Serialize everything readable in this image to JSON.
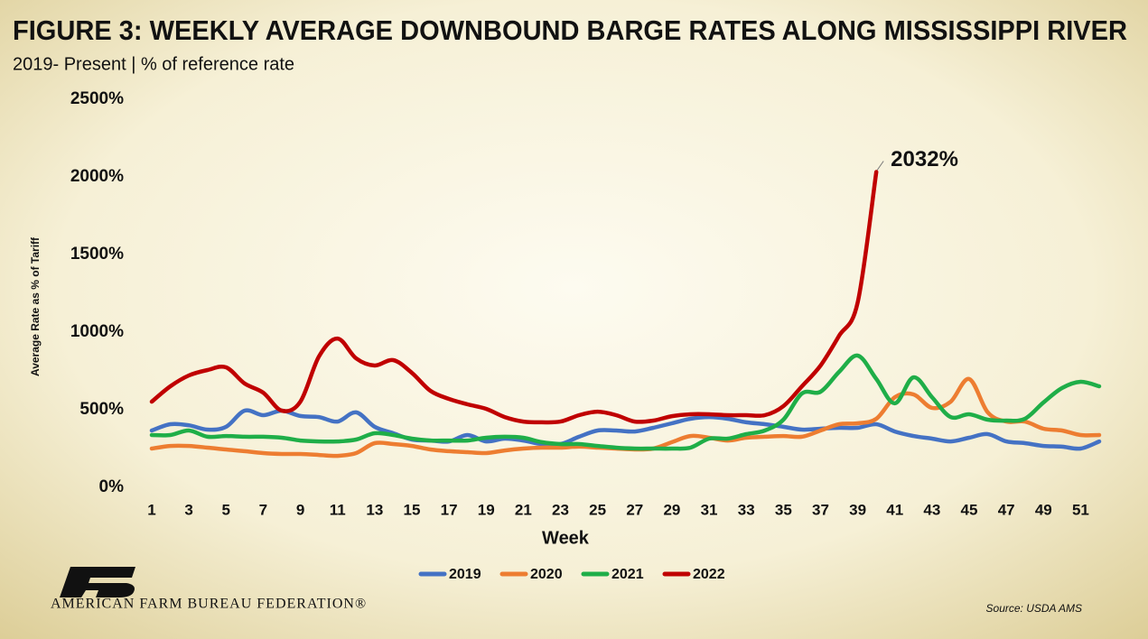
{
  "chart_data": {
    "type": "line",
    "title": "FIGURE 3: WEEKLY AVERAGE DOWNBOUND BARGE RATES ALONG MISSISSIPPI RIVER",
    "subtitle": "2019- Present | % of reference rate",
    "y_label": "Average Rate as % of Tariff",
    "x_label": "Week",
    "source": "Source: USDA AMS",
    "organization": "AMERICAN FARM BUREAU FEDERATION®",
    "x": [
      1,
      2,
      3,
      4,
      5,
      6,
      7,
      8,
      9,
      10,
      11,
      12,
      13,
      14,
      15,
      16,
      17,
      18,
      19,
      20,
      21,
      22,
      23,
      24,
      25,
      26,
      27,
      28,
      29,
      30,
      31,
      32,
      33,
      34,
      35,
      36,
      37,
      38,
      39,
      40,
      41,
      42,
      43,
      44,
      45,
      46,
      47,
      48,
      49,
      50,
      51,
      52
    ],
    "xlim": [
      1,
      52
    ],
    "xticks": [
      1,
      3,
      5,
      7,
      9,
      11,
      13,
      15,
      17,
      19,
      21,
      23,
      25,
      27,
      29,
      31,
      33,
      35,
      37,
      39,
      41,
      43,
      45,
      47,
      49,
      51
    ],
    "ylim": [
      0,
      2500
    ],
    "yticks": [
      {
        "value": 0,
        "label": "0%"
      },
      {
        "value": 500,
        "label": "500%"
      },
      {
        "value": 1000,
        "label": "1000%"
      },
      {
        "value": 1500,
        "label": "1500%"
      },
      {
        "value": 2000,
        "label": "2000%"
      },
      {
        "value": 2500,
        "label": "2500%"
      }
    ],
    "grid": false,
    "legend": "bottom",
    "series": [
      {
        "name": "2019",
        "color": "#4472c4",
        "values": [
          366,
          407,
          400,
          372,
          390,
          494,
          465,
          494,
          460,
          453,
          424,
          483,
          390,
          349,
          308,
          302,
          296,
          337,
          296,
          314,
          302,
          279,
          279,
          326,
          366,
          366,
          360,
          384,
          413,
          442,
          453,
          442,
          419,
          407,
          390,
          372,
          378,
          384,
          384,
          407,
          360,
          331,
          314,
          296,
          320,
          343,
          296,
          285,
          267,
          262,
          250,
          296
        ]
      },
      {
        "name": "2020",
        "color": "#ed7d31",
        "values": [
          250,
          267,
          267,
          256,
          244,
          233,
          221,
          215,
          215,
          209,
          203,
          221,
          285,
          279,
          267,
          244,
          233,
          227,
          221,
          238,
          250,
          256,
          256,
          262,
          256,
          250,
          244,
          250,
          291,
          331,
          320,
          302,
          320,
          326,
          331,
          326,
          366,
          407,
          413,
          442,
          581,
          599,
          512,
          552,
          698,
          483,
          424,
          424,
          378,
          366,
          337,
          337
        ]
      },
      {
        "name": "2021",
        "color": "#1fae48",
        "values": [
          337,
          337,
          366,
          326,
          331,
          326,
          326,
          320,
          302,
          296,
          296,
          308,
          349,
          337,
          314,
          302,
          302,
          302,
          320,
          326,
          320,
          291,
          279,
          279,
          267,
          256,
          250,
          250,
          250,
          256,
          314,
          314,
          343,
          366,
          436,
          605,
          616,
          744,
          849,
          698,
          541,
          709,
          581,
          453,
          471,
          436,
          430,
          442,
          547,
          640,
          680,
          651
        ]
      },
      {
        "name": "2022",
        "color": "#c00000",
        "values": [
          552,
          651,
          721,
          756,
          773,
          669,
          610,
          494,
          552,
          843,
          959,
          831,
          785,
          820,
          738,
          622,
          570,
          535,
          506,
          453,
          424,
          419,
          424,
          465,
          488,
          465,
          424,
          430,
          459,
          471,
          471,
          465,
          465,
          465,
          523,
          651,
          785,
          977,
          1192,
          2032,
          null,
          null,
          null,
          null,
          null,
          null,
          null,
          null,
          null,
          null,
          null,
          null
        ],
        "value_labels": [
          null,
          null,
          null,
          null,
          null,
          null,
          null,
          null,
          null,
          null,
          null,
          null,
          null,
          null,
          null,
          null,
          null,
          null,
          null,
          null,
          null,
          null,
          null,
          null,
          null,
          null,
          null,
          null,
          null,
          null,
          null,
          null,
          null,
          null,
          null,
          null,
          null,
          null,
          null,
          "2032%",
          null,
          null,
          null,
          null,
          null,
          null,
          null,
          null,
          null,
          null,
          null,
          null
        ]
      }
    ]
  }
}
